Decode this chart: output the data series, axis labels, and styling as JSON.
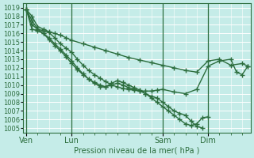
{
  "xlabel": "Pression niveau de la mer( hPa )",
  "background_color": "#c5ece8",
  "grid_color": "#b0ddd8",
  "line_color": "#2d6e3e",
  "ylim": [
    1004.5,
    1019.5
  ],
  "yticks": [
    1005,
    1006,
    1007,
    1008,
    1009,
    1010,
    1011,
    1012,
    1013,
    1014,
    1015,
    1016,
    1017,
    1018,
    1019
  ],
  "day_labels": [
    "Ven",
    "Lun",
    "Sam",
    "Dim"
  ],
  "day_positions": [
    0,
    8,
    24,
    32
  ],
  "total_steps": 40,
  "lines": [
    {
      "x": [
        0,
        1,
        2,
        3,
        4,
        5,
        6,
        7,
        8,
        10,
        12,
        14,
        16,
        18,
        20,
        22,
        24,
        26,
        28,
        30,
        32,
        34,
        36,
        38,
        39
      ],
      "y": [
        1018.8,
        1018.0,
        1016.8,
        1016.5,
        1016.2,
        1016.0,
        1015.8,
        1015.5,
        1015.2,
        1014.8,
        1014.4,
        1014.0,
        1013.6,
        1013.2,
        1012.9,
        1012.6,
        1012.3,
        1012.0,
        1011.7,
        1011.5,
        1012.8,
        1013.0,
        1012.3,
        1012.5,
        1012.2
      ]
    },
    {
      "x": [
        0,
        1,
        2,
        3,
        4,
        5,
        6,
        7,
        8,
        9,
        10,
        11,
        12,
        13,
        14,
        15,
        16,
        17,
        18,
        19,
        20,
        21,
        22,
        23,
        24,
        26,
        28,
        30,
        32,
        34,
        36,
        37,
        38,
        39
      ],
      "y": [
        1018.8,
        1017.5,
        1016.5,
        1016.3,
        1016.1,
        1015.5,
        1014.8,
        1014.3,
        1013.8,
        1013.0,
        1012.3,
        1011.7,
        1011.2,
        1010.8,
        1010.4,
        1010.0,
        1009.8,
        1009.6,
        1009.5,
        1009.4,
        1009.3,
        1009.3,
        1009.3,
        1009.4,
        1009.5,
        1009.2,
        1009.0,
        1009.5,
        1012.2,
        1012.8,
        1013.0,
        1011.5,
        1011.2,
        1012.2
      ]
    },
    {
      "x": [
        0,
        1,
        2,
        3,
        4,
        5,
        6,
        7,
        8,
        9,
        10,
        11,
        12,
        13,
        14,
        15,
        16,
        17,
        18,
        19,
        20,
        21,
        22,
        23,
        24,
        25,
        26,
        27,
        28,
        29,
        30,
        31
      ],
      "y": [
        1018.8,
        1017.0,
        1016.5,
        1016.0,
        1015.3,
        1014.6,
        1014.0,
        1013.3,
        1012.5,
        1011.8,
        1011.2,
        1010.7,
        1010.3,
        1010.0,
        1009.8,
        1010.0,
        1010.2,
        1010.0,
        1009.7,
        1009.5,
        1009.3,
        1009.0,
        1008.7,
        1008.5,
        1008.0,
        1007.5,
        1007.0,
        1006.7,
        1006.5,
        1005.8,
        1005.2,
        1005.0
      ]
    },
    {
      "x": [
        0,
        1,
        2,
        3,
        4,
        5,
        6,
        7,
        8,
        9,
        10,
        11,
        12,
        13,
        14,
        15,
        16,
        17,
        18,
        19,
        20,
        21,
        22,
        23,
        24,
        25,
        26,
        27,
        28,
        29,
        30,
        31,
        32
      ],
      "y": [
        1018.8,
        1016.5,
        1016.3,
        1016.0,
        1015.5,
        1014.8,
        1014.2,
        1013.5,
        1012.8,
        1012.0,
        1011.3,
        1010.7,
        1010.2,
        1009.8,
        1009.8,
        1010.2,
        1010.5,
        1010.3,
        1010.0,
        1009.7,
        1009.4,
        1009.0,
        1008.5,
        1008.0,
        1007.5,
        1007.0,
        1006.5,
        1006.0,
        1005.5,
        1005.3,
        1005.5,
        1006.2,
        1006.3
      ]
    }
  ],
  "marker": "+",
  "marker_size": 4,
  "line_width": 1.0,
  "font_size": 7,
  "tick_font_size": 6
}
